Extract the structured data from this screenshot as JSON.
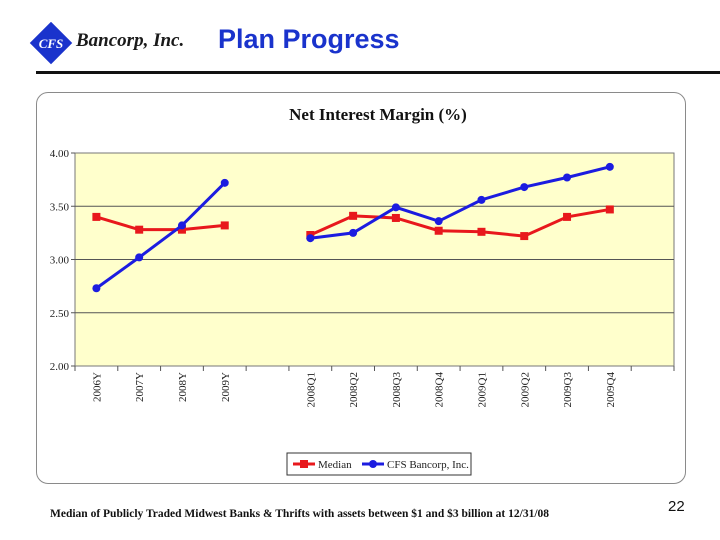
{
  "header": {
    "logo_mark": "CFS",
    "company": "Bancorp, Inc.",
    "slide_title": "Plan Progress"
  },
  "page_number": "22",
  "footnote": "Median of Publicly Traded Midwest Banks & Thrifts with assets between $1 and $3 billion at 12/31/08",
  "colors": {
    "title_blue": "#1a33cc",
    "plot_fill": "#ffffcc",
    "median": "#e8181c",
    "cfs": "#1c1ce0"
  },
  "chart_data": {
    "type": "line",
    "title": "Net Interest Margin (%)",
    "ylim": [
      2.0,
      4.0
    ],
    "y_ticks": [
      "2.00",
      "2.50",
      "3.00",
      "3.50",
      "4.00"
    ],
    "categories": [
      "2006Y",
      "2007Y",
      "2008Y",
      "2009Y",
      "",
      "2008Q1",
      "2008Q2",
      "2008Q3",
      "2008Q4",
      "2009Q1",
      "2009Q2",
      "2009Q3",
      "2009Q4",
      ""
    ],
    "grid": true,
    "legend_position": "bottom",
    "series": [
      {
        "name": "Median",
        "color": "#e8181c",
        "marker": "square",
        "values": [
          3.4,
          3.28,
          3.28,
          3.32,
          null,
          3.23,
          3.41,
          3.39,
          3.27,
          3.26,
          3.22,
          3.4,
          3.47,
          null
        ]
      },
      {
        "name": "CFS Bancorp, Inc.",
        "color": "#1c1ce0",
        "marker": "circle",
        "values": [
          2.73,
          3.02,
          3.32,
          3.72,
          null,
          3.2,
          3.25,
          3.49,
          3.36,
          3.56,
          3.68,
          3.77,
          3.87,
          null
        ]
      }
    ]
  }
}
